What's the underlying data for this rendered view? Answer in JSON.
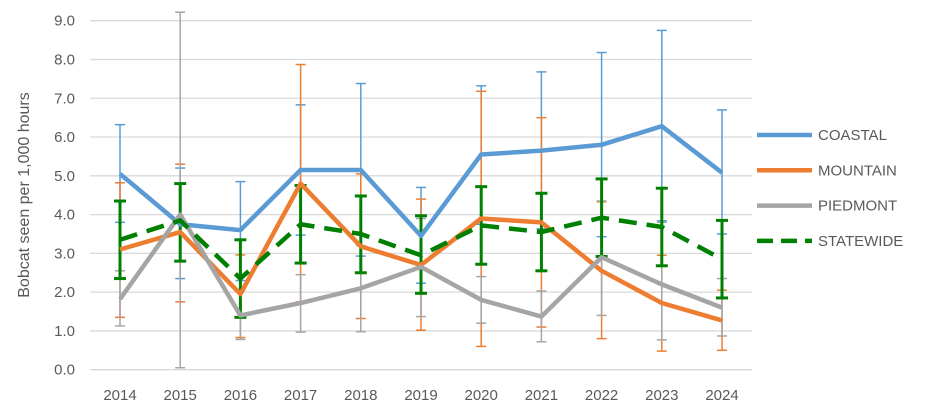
{
  "chart_data": {
    "type": "line",
    "title": "",
    "xlabel": "",
    "ylabel": "Bobcat seen per 1,000 hours",
    "ylim": [
      0,
      9
    ],
    "yticks": [
      "0.0",
      "1.0",
      "2.0",
      "3.0",
      "4.0",
      "5.0",
      "6.0",
      "7.0",
      "8.0",
      "9.0"
    ],
    "categories": [
      "2014",
      "2015",
      "2016",
      "2017",
      "2018",
      "2019",
      "2020",
      "2021",
      "2022",
      "2023",
      "2024"
    ],
    "grid": true,
    "legend_position": "right",
    "series": [
      {
        "name": "COASTAL",
        "color": "#5B9BD5",
        "dashed": false,
        "values": [
          5.05,
          3.75,
          3.6,
          5.15,
          5.15,
          3.45,
          5.55,
          5.65,
          5.8,
          6.28,
          5.08
        ],
        "upper": [
          6.32,
          5.2,
          4.85,
          6.83,
          7.38,
          4.7,
          7.32,
          7.68,
          8.18,
          8.75,
          6.7
        ],
        "lower": [
          3.8,
          2.35,
          2.3,
          3.47,
          2.93,
          2.23,
          3.75,
          3.63,
          3.43,
          3.84,
          3.5
        ]
      },
      {
        "name": "MOUNTAIN",
        "color": "#ED7D31",
        "dashed": false,
        "values": [
          3.1,
          3.55,
          1.95,
          4.8,
          3.18,
          2.7,
          3.9,
          3.8,
          2.55,
          1.72,
          1.27
        ],
        "upper": [
          4.82,
          5.3,
          2.96,
          7.87,
          5.05,
          4.4,
          7.18,
          6.5,
          4.33,
          2.95,
          2.05
        ],
        "lower": [
          1.35,
          1.75,
          0.83,
          1.75,
          1.32,
          1.02,
          0.6,
          1.1,
          0.8,
          0.48,
          0.5
        ]
      },
      {
        "name": "PIEDMONT",
        "color": "#A5A5A5",
        "dashed": false,
        "values": [
          1.82,
          4.0,
          1.4,
          1.72,
          2.1,
          2.65,
          1.8,
          1.37,
          2.9,
          2.2,
          1.6
        ],
        "upper": [
          2.55,
          9.22,
          2.05,
          2.45,
          3.2,
          3.9,
          2.4,
          2.03,
          4.35,
          3.8,
          2.35
        ],
        "lower": [
          1.13,
          0.05,
          0.78,
          0.97,
          0.98,
          1.37,
          1.2,
          0.72,
          1.4,
          0.77,
          0.87
        ]
      },
      {
        "name": "STATEWIDE",
        "color": "#008000",
        "dashed": true,
        "values": [
          3.35,
          3.85,
          2.35,
          3.75,
          3.5,
          2.95,
          3.72,
          3.55,
          3.92,
          3.68,
          2.85
        ],
        "upper": [
          4.35,
          4.8,
          3.35,
          4.75,
          4.48,
          3.97,
          4.72,
          4.55,
          4.92,
          4.68,
          3.85
        ],
        "lower": [
          2.35,
          2.8,
          1.35,
          2.75,
          2.5,
          1.97,
          2.72,
          2.55,
          2.92,
          2.68,
          1.85
        ]
      }
    ]
  }
}
